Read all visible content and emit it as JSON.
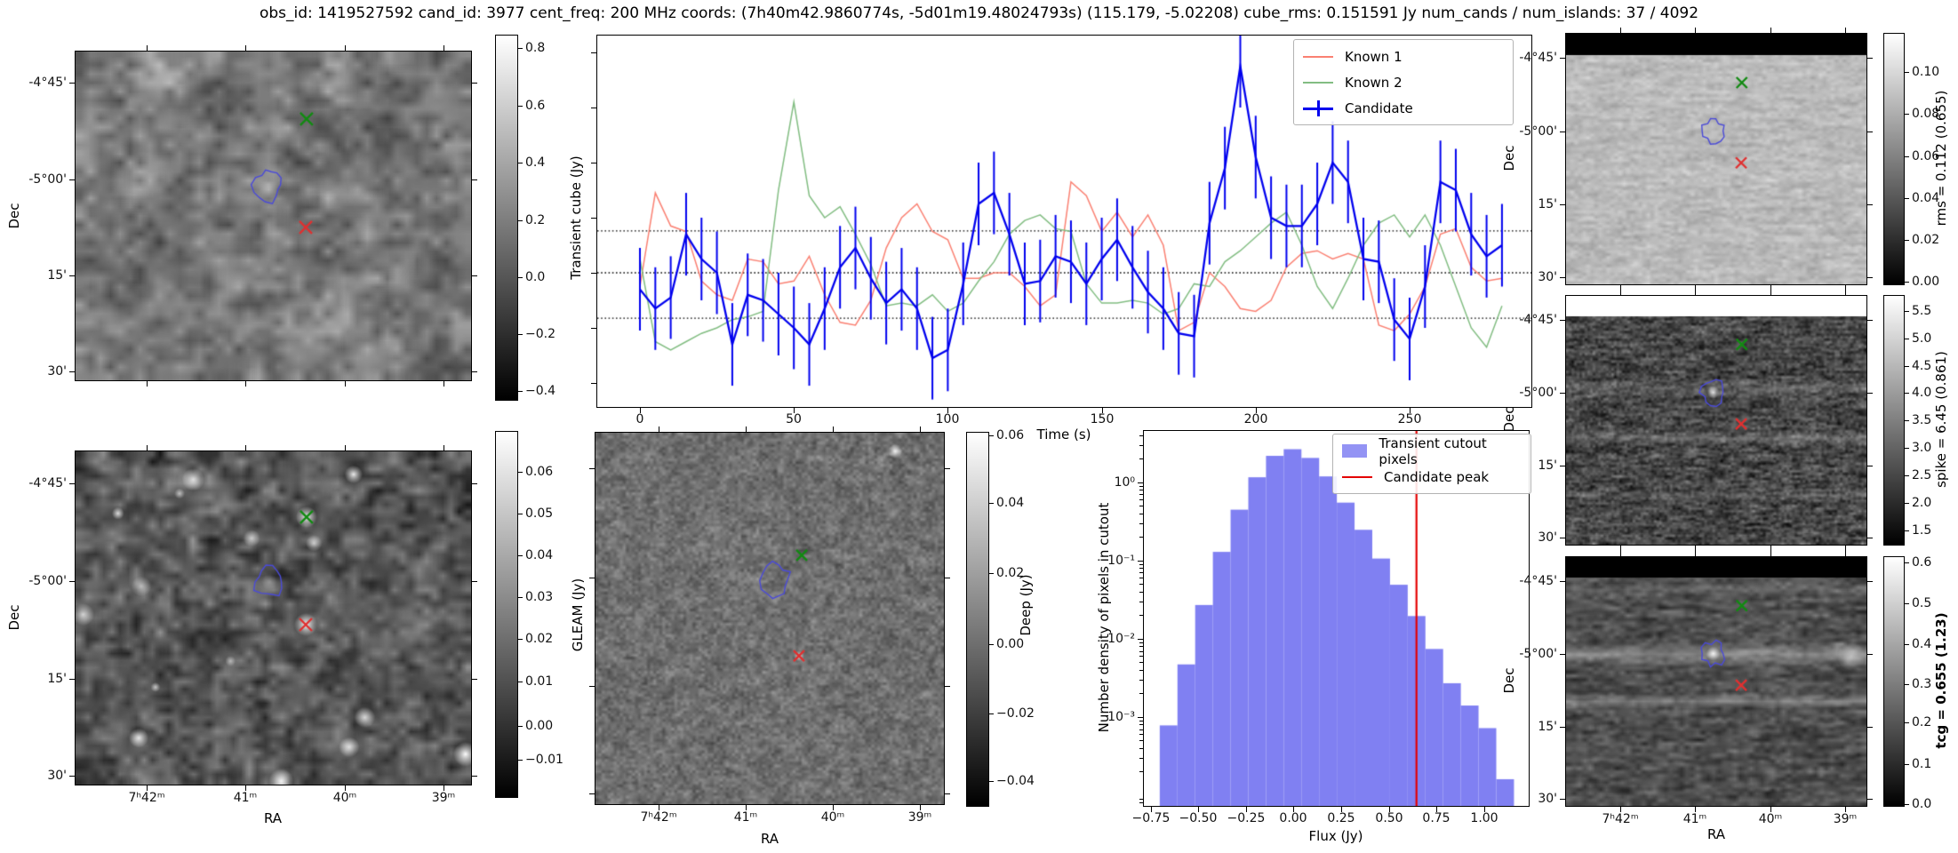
{
  "title": "obs_id: 1419527592 cand_id: 3977 cent_freq: 200 MHz coords: (7h40m42.9860774s, -5d01m19.48024793s) (115.179, -5.02208) cube_rms: 0.151591 Jy num_cands / num_islands: 37 / 4092",
  "colors": {
    "known1": "#fa8072",
    "known2": "#82bd82",
    "candidate": "#0000ee",
    "hist_bar": "#8080f2",
    "candidate_peak": "#e40000",
    "marker_known_green": "#128a12",
    "marker_known_red": "#e03030",
    "island_contour": "#4a4ad8",
    "threshold_lines": "#000000"
  },
  "axes_shared": {
    "dec_ticks": [
      "-4°45'",
      "-5°00'",
      "15'",
      "30'"
    ],
    "ra_ticks": [
      "7ʰ42ᵐ",
      "41ᵐ",
      "40ᵐ",
      "39ᵐ"
    ]
  },
  "panels": {
    "transient_cutout": {
      "ylabel": "Dec",
      "colorbar": {
        "label": "Transient cube (Jy)",
        "ticks": [
          "0.8",
          "0.6",
          "0.4",
          "0.2",
          "0.0",
          "−0.2",
          "−0.4"
        ]
      }
    },
    "gleam": {
      "xlabel": "RA",
      "ylabel": "Dec",
      "colorbar": {
        "label": "GLEAM (Jy)",
        "ticks": [
          "0.06",
          "0.05",
          "0.04",
          "0.03",
          "0.02",
          "0.01",
          "0.00",
          "−0.01"
        ]
      }
    },
    "deep": {
      "xlabel": "RA",
      "colorbar": {
        "label": "Deep (Jy)",
        "ticks": [
          "0.06",
          "0.04",
          "0.02",
          "0.00",
          "−0.02",
          "−0.04"
        ]
      }
    },
    "rms": {
      "ylabel": "Dec",
      "colorbar": {
        "label": "rms = 0.112 (0.655)",
        "ticks": [
          "0.10",
          "0.08",
          "0.06",
          "0.04",
          "0.02",
          "0.00"
        ]
      }
    },
    "spike": {
      "ylabel": "Dec",
      "colorbar": {
        "label": "spike = 6.45 (0.861)",
        "ticks": [
          "5.5",
          "5.0",
          "4.5",
          "4.0",
          "3.5",
          "3.0",
          "2.5",
          "2.0",
          "1.5"
        ]
      }
    },
    "tcg": {
      "xlabel": "RA",
      "ylabel": "Dec",
      "colorbar": {
        "label": "tcg = 0.655 (1.23)",
        "ticks": [
          "0.6",
          "0.5",
          "0.4",
          "0.3",
          "0.2",
          "0.1",
          "0.0"
        ]
      }
    }
  },
  "chart_data": [
    {
      "type": "line",
      "title": "",
      "xlabel": "Time (s)",
      "ylabel": "",
      "x_ticks": [
        "0",
        "50",
        "100",
        "150",
        "200",
        "250"
      ],
      "x_tick_values": [
        0,
        50,
        100,
        150,
        200,
        250
      ],
      "xlim": [
        -14,
        290
      ],
      "ylim": [
        -0.49,
        0.86
      ],
      "grid": false,
      "hlines": [
        0.152,
        0,
        -0.165
      ],
      "hline_style": "dotted",
      "legend_position": "upper right",
      "x": [
        0,
        5,
        10,
        15,
        20,
        25,
        30,
        35,
        40,
        45,
        50,
        55,
        60,
        65,
        70,
        75,
        80,
        85,
        90,
        95,
        100,
        105,
        110,
        115,
        120,
        125,
        130,
        135,
        140,
        145,
        150,
        155,
        160,
        165,
        170,
        175,
        180,
        185,
        190,
        195,
        200,
        205,
        210,
        215,
        220,
        225,
        230,
        235,
        240,
        245,
        250,
        255,
        260,
        265,
        270,
        275,
        280
      ],
      "series": [
        {
          "name": "Known 1",
          "values": [
            -0.05,
            0.29,
            0.17,
            0.15,
            -0.03,
            -0.08,
            -0.1,
            0.05,
            0.04,
            -0.04,
            -0.03,
            0.06,
            -0.08,
            -0.18,
            -0.19,
            -0.1,
            0.09,
            0.2,
            0.25,
            0.15,
            0.12,
            -0.02,
            -0.02,
            0.0,
            0.0,
            -0.05,
            -0.12,
            -0.08,
            0.33,
            0.28,
            0.15,
            0.22,
            0.13,
            0.21,
            0.1,
            -0.21,
            -0.18,
            0.0,
            -0.05,
            -0.13,
            -0.14,
            -0.1,
            0.02,
            0.07,
            0.08,
            0.05,
            0.07,
            0.05,
            -0.19,
            -0.21,
            -0.15,
            -0.05,
            0.14,
            0.16,
            0.02,
            -0.03,
            -0.02
          ]
        },
        {
          "name": "Known 2",
          "values": [
            0.05,
            -0.25,
            -0.28,
            -0.25,
            -0.22,
            -0.2,
            -0.17,
            -0.16,
            -0.14,
            0.3,
            0.62,
            0.28,
            0.2,
            0.24,
            0.14,
            0.03,
            -0.12,
            -0.11,
            -0.12,
            -0.08,
            -0.14,
            -0.11,
            -0.03,
            0.04,
            0.14,
            0.19,
            0.21,
            0.16,
            0.15,
            -0.04,
            -0.11,
            -0.11,
            -0.1,
            -0.11,
            -0.15,
            -0.13,
            -0.04,
            -0.05,
            0.04,
            0.08,
            0.13,
            0.18,
            0.22,
            0.1,
            -0.05,
            -0.13,
            -0.02,
            0.1,
            0.18,
            0.21,
            0.13,
            0.21,
            0.1,
            -0.05,
            -0.2,
            -0.27,
            -0.12
          ]
        },
        {
          "name": "Candidate",
          "yerr": 0.15,
          "values": [
            -0.06,
            -0.13,
            -0.09,
            0.14,
            0.05,
            0.0,
            -0.26,
            -0.08,
            -0.1,
            -0.15,
            -0.2,
            -0.26,
            -0.13,
            0.02,
            0.09,
            -0.02,
            -0.11,
            -0.06,
            -0.13,
            -0.31,
            -0.28,
            -0.04,
            0.25,
            0.29,
            0.14,
            -0.04,
            -0.03,
            0.06,
            0.04,
            -0.04,
            0.05,
            0.12,
            0.02,
            -0.07,
            -0.13,
            -0.22,
            -0.23,
            0.18,
            0.38,
            0.75,
            0.42,
            0.2,
            0.17,
            0.17,
            0.25,
            0.4,
            0.33,
            0.05,
            0.04,
            -0.17,
            -0.24,
            -0.05,
            0.33,
            0.3,
            0.14,
            0.06,
            0.1
          ]
        }
      ]
    },
    {
      "type": "bar",
      "title": "",
      "xlabel": "Flux (Jy)",
      "ylabel": "Number density of pixels in cutout",
      "yscale": "log",
      "x_ticks": [
        "−0.75",
        "−0.50",
        "−0.25",
        "0.00",
        "0.25",
        "0.50",
        "0.75",
        "1.00"
      ],
      "x_tick_values": [
        -0.75,
        -0.5,
        -0.25,
        0,
        0.25,
        0.5,
        0.75,
        1
      ],
      "y_ticks": [
        "10⁰",
        "10⁻¹",
        "10⁻²",
        "10⁻³"
      ],
      "xlim": [
        -0.79,
        1.23
      ],
      "ylim": [
        8e-05,
        4.5
      ],
      "bin_start": -0.703,
      "bin_width": 0.093,
      "values": [
        0.00078,
        0.0047,
        0.027,
        0.129,
        0.447,
        1.16,
        2.18,
        2.65,
        2.05,
        1.19,
        0.55,
        0.247,
        0.106,
        0.049,
        0.0195,
        0.0074,
        0.0027,
        0.0014,
        0.00072,
        0.00016
      ],
      "vline_x": 0.645,
      "legend": [
        {
          "label": "Transient cutout pixels",
          "type": "patch"
        },
        {
          "label": "Candidate peak",
          "type": "line"
        }
      ]
    }
  ]
}
